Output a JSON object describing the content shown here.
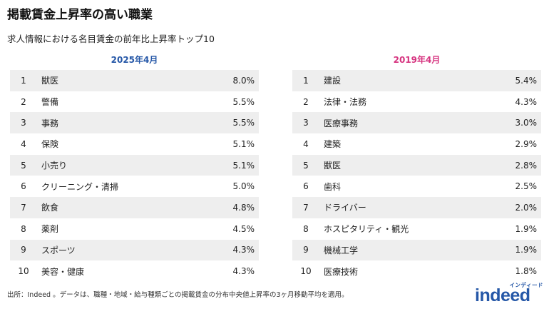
{
  "title": "掲載賃金上昇率の高い職業",
  "subtitle": "求人情報における名目賃金の前年比上昇率トップ10",
  "colors": {
    "left_header": "#2557a7",
    "right_header": "#d6337f",
    "row_shade": "#eeeeee",
    "logo": "#2557a7"
  },
  "left": {
    "header": "2025年4月",
    "rows": [
      {
        "rank": "1",
        "job": "獣医",
        "value": "8.0%"
      },
      {
        "rank": "2",
        "job": "警備",
        "value": "5.5%"
      },
      {
        "rank": "3",
        "job": "事務",
        "value": "5.5%"
      },
      {
        "rank": "4",
        "job": "保険",
        "value": "5.1%"
      },
      {
        "rank": "5",
        "job": "小売り",
        "value": "5.1%"
      },
      {
        "rank": "6",
        "job": "クリーニング・清掃",
        "value": "5.0%"
      },
      {
        "rank": "7",
        "job": "飲食",
        "value": "4.8%"
      },
      {
        "rank": "8",
        "job": "薬剤",
        "value": "4.5%"
      },
      {
        "rank": "9",
        "job": "スポーツ",
        "value": "4.3%"
      },
      {
        "rank": "10",
        "job": "美容・健康",
        "value": "4.3%"
      }
    ]
  },
  "right": {
    "header": "2019年4月",
    "rows": [
      {
        "rank": "1",
        "job": "建設",
        "value": "5.4%"
      },
      {
        "rank": "2",
        "job": "法律・法務",
        "value": "4.3%"
      },
      {
        "rank": "3",
        "job": "医療事務",
        "value": "3.0%"
      },
      {
        "rank": "4",
        "job": "建築",
        "value": "2.9%"
      },
      {
        "rank": "5",
        "job": "獣医",
        "value": "2.8%"
      },
      {
        "rank": "6",
        "job": "歯科",
        "value": "2.5%"
      },
      {
        "rank": "7",
        "job": "ドライバー",
        "value": "2.0%"
      },
      {
        "rank": "8",
        "job": "ホスピタリティ・観光",
        "value": "1.9%"
      },
      {
        "rank": "9",
        "job": "機械工学",
        "value": "1.9%"
      },
      {
        "rank": "10",
        "job": "医療技術",
        "value": "1.8%"
      }
    ]
  },
  "footnote": "出所：Indeed 。データは、職種・地域・給与種類ごとの掲載賃金の分布中央値上昇率の3ヶ月移動平均を適用。",
  "logo": {
    "sub": "インディード",
    "main": "indeed"
  }
}
